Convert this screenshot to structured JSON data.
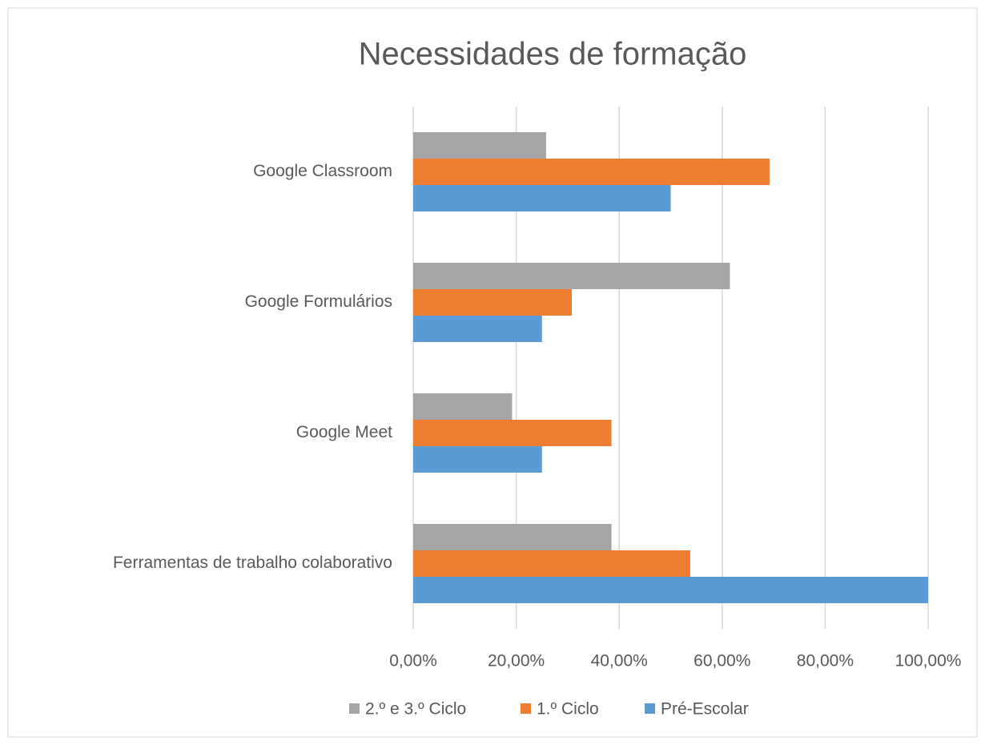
{
  "chart_data": {
    "type": "bar",
    "orientation": "horizontal",
    "title": "Necessidades de formação",
    "categories": [
      "Google Classroom",
      "Google Formulários",
      "Google Meet",
      "Ferramentas de trabalho colaborativo"
    ],
    "series": [
      {
        "name": "2.º e 3.º Ciclo",
        "color": "#a5a5a5",
        "values": [
          25.8,
          61.5,
          19.2,
          38.5
        ]
      },
      {
        "name": "1.º Ciclo",
        "color": "#ed7d31",
        "values": [
          69.2,
          30.8,
          38.5,
          53.8
        ]
      },
      {
        "name": "Pré-Escolar",
        "color": "#5b9bd5",
        "values": [
          50,
          25,
          25,
          100
        ]
      }
    ],
    "xlim": [
      0,
      100
    ],
    "xticks": [
      {
        "value": 0,
        "label": "0,00%"
      },
      {
        "value": 20,
        "label": "20,00%"
      },
      {
        "value": 40,
        "label": "40,00%"
      },
      {
        "value": 60,
        "label": "60,00%"
      },
      {
        "value": 80,
        "label": "80,00%"
      },
      {
        "value": 100,
        "label": "100,00%"
      }
    ],
    "grid": true,
    "legend": "bottom"
  }
}
